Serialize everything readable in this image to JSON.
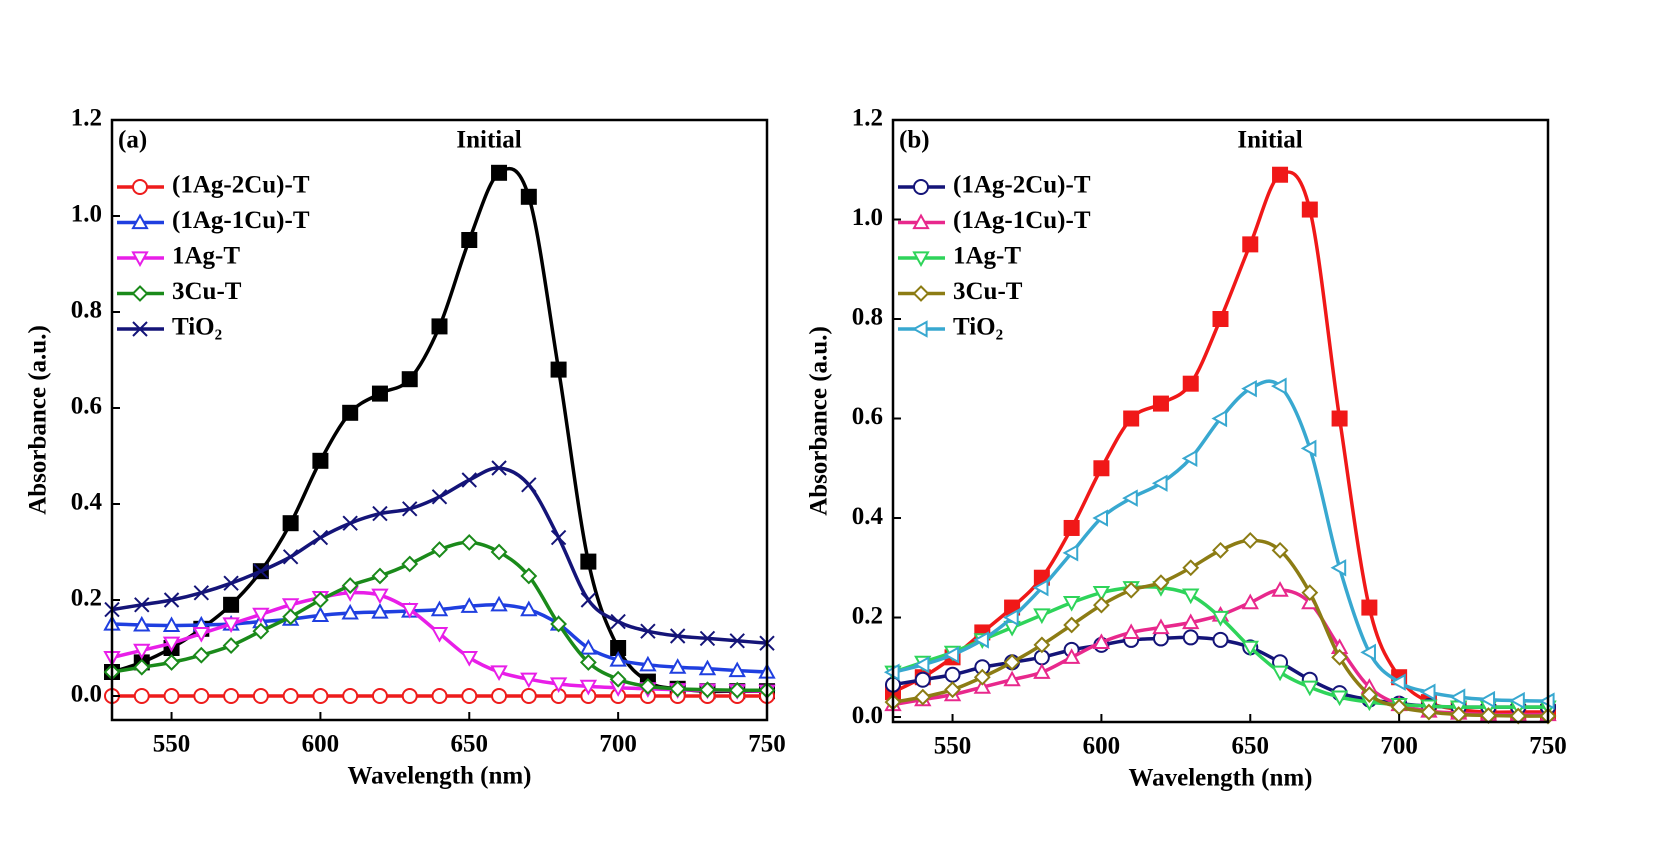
{
  "chart_data": [
    {
      "type": "line",
      "label": "(a)",
      "annotation": "Initial",
      "xlabel": "Wavelength (nm)",
      "ylabel": "Absorbance (a.u.)",
      "xlim": [
        530,
        750
      ],
      "ylim": [
        -0.05,
        1.2
      ],
      "xticks": [
        550,
        600,
        650,
        700,
        750
      ],
      "yticks": [
        {
          "value": 0,
          "label": "0.0"
        },
        0.2,
        0.4,
        0.6,
        0.8,
        {
          "value": 1,
          "label": "1.0"
        },
        1.2
      ],
      "x": [
        530,
        540,
        550,
        560,
        570,
        580,
        590,
        600,
        610,
        620,
        630,
        640,
        650,
        660,
        670,
        680,
        690,
        700,
        710,
        720,
        730,
        740,
        750
      ],
      "series": [
        {
          "color": "#000000",
          "marker": "square",
          "values": [
            0.05,
            0.07,
            0.1,
            0.14,
            0.19,
            0.26,
            0.36,
            0.49,
            0.59,
            0.63,
            0.66,
            0.77,
            0.95,
            1.09,
            1.04,
            0.68,
            0.28,
            0.1,
            0.03,
            0.015,
            0.01,
            0.01,
            0.01
          ]
        },
        {
          "name": "(1Ag-2Cu)-T",
          "color": "#ee1c1c",
          "marker": "circle",
          "values": [
            0,
            0,
            0,
            0,
            0,
            0,
            0,
            0,
            0,
            0,
            0,
            0,
            0,
            0,
            0,
            0,
            0,
            0,
            0,
            0,
            0,
            0,
            0
          ]
        },
        {
          "name": "(1Ag-1Cu)-T",
          "color": "#1f3fe0",
          "marker": "triangle-up",
          "values": [
            0.15,
            0.148,
            0.147,
            0.148,
            0.15,
            0.155,
            0.16,
            0.168,
            0.173,
            0.175,
            0.177,
            0.18,
            0.187,
            0.19,
            0.18,
            0.15,
            0.1,
            0.075,
            0.065,
            0.06,
            0.057,
            0.053,
            0.05
          ]
        },
        {
          "name": "1Ag-T",
          "color": "#e81ee8",
          "marker": "triangle-down",
          "values": [
            0.08,
            0.095,
            0.11,
            0.13,
            0.15,
            0.17,
            0.19,
            0.205,
            0.215,
            0.21,
            0.18,
            0.13,
            0.08,
            0.05,
            0.035,
            0.025,
            0.02,
            0.017,
            0.015,
            0.013,
            0.012,
            0.011,
            0.01
          ]
        },
        {
          "name": "3Cu-T",
          "color": "#1a8a1a",
          "marker": "diamond",
          "values": [
            0.05,
            0.06,
            0.07,
            0.085,
            0.105,
            0.135,
            0.165,
            0.2,
            0.23,
            0.25,
            0.275,
            0.305,
            0.32,
            0.3,
            0.25,
            0.15,
            0.07,
            0.035,
            0.02,
            0.015,
            0.013,
            0.012,
            0.012
          ]
        },
        {
          "name": "TiO₂",
          "color": "#141478",
          "marker": "x",
          "values": [
            0.18,
            0.19,
            0.2,
            0.215,
            0.235,
            0.26,
            0.29,
            0.33,
            0.36,
            0.38,
            0.39,
            0.415,
            0.45,
            0.475,
            0.44,
            0.33,
            0.2,
            0.155,
            0.135,
            0.125,
            0.12,
            0.115,
            0.11
          ]
        }
      ]
    },
    {
      "type": "line",
      "label": "(b)",
      "annotation": "Initial",
      "xlabel": "Wavelength (nm)",
      "ylabel": "Absorbance (a.u.)",
      "xlim": [
        530,
        750
      ],
      "ylim": [
        -0.01,
        1.2
      ],
      "xticks": [
        550,
        600,
        650,
        700,
        750
      ],
      "yticks": [
        {
          "value": 0,
          "label": "0.0"
        },
        0.2,
        0.4,
        0.6,
        0.8,
        {
          "value": 1,
          "label": "1.0"
        },
        1.2
      ],
      "x": [
        530,
        540,
        550,
        560,
        570,
        580,
        590,
        600,
        610,
        620,
        630,
        640,
        650,
        660,
        670,
        680,
        690,
        700,
        710,
        720,
        730,
        740,
        750
      ],
      "series": [
        {
          "color": "#f01818",
          "marker": "square",
          "values": [
            0.05,
            0.08,
            0.12,
            0.17,
            0.22,
            0.28,
            0.38,
            0.5,
            0.6,
            0.63,
            0.67,
            0.8,
            0.95,
            1.09,
            1.02,
            0.6,
            0.22,
            0.08,
            0.03,
            0.015,
            0.01,
            0.01,
            0.01
          ]
        },
        {
          "name": "(1Ag-2Cu)-T",
          "color": "#141478",
          "marker": "circle",
          "values": [
            0.065,
            0.075,
            0.085,
            0.1,
            0.11,
            0.12,
            0.135,
            0.145,
            0.155,
            0.158,
            0.16,
            0.155,
            0.14,
            0.11,
            0.075,
            0.048,
            0.035,
            0.027,
            0.022,
            0.02,
            0.02,
            0.02,
            0.02
          ]
        },
        {
          "name": "(1Ag-1Cu)-T",
          "color": "#e8288c",
          "marker": "triangle-up",
          "values": [
            0.025,
            0.035,
            0.045,
            0.06,
            0.075,
            0.09,
            0.12,
            0.15,
            0.17,
            0.18,
            0.19,
            0.205,
            0.23,
            0.255,
            0.23,
            0.14,
            0.06,
            0.025,
            0.012,
            0.008,
            0.005,
            0.005,
            0.005
          ]
        },
        {
          "name": "1Ag-T",
          "color": "#2ed45a",
          "marker": "triangle-down",
          "values": [
            0.09,
            0.11,
            0.13,
            0.155,
            0.18,
            0.205,
            0.23,
            0.25,
            0.26,
            0.26,
            0.245,
            0.2,
            0.14,
            0.09,
            0.06,
            0.04,
            0.03,
            0.025,
            0.022,
            0.02,
            0.02,
            0.02,
            0.02
          ]
        },
        {
          "name": "3Cu-T",
          "color": "#8c7c14",
          "marker": "diamond",
          "values": [
            0.03,
            0.04,
            0.055,
            0.08,
            0.11,
            0.145,
            0.185,
            0.225,
            0.255,
            0.27,
            0.3,
            0.335,
            0.355,
            0.335,
            0.25,
            0.12,
            0.045,
            0.02,
            0.01,
            0.005,
            0.003,
            0.002,
            0.002
          ]
        },
        {
          "name": "TiO₂",
          "color": "#38a8d0",
          "marker": "triangle-left",
          "values": [
            0.09,
            0.105,
            0.125,
            0.155,
            0.2,
            0.26,
            0.33,
            0.4,
            0.44,
            0.47,
            0.52,
            0.6,
            0.66,
            0.665,
            0.54,
            0.3,
            0.13,
            0.07,
            0.05,
            0.04,
            0.035,
            0.033,
            0.032
          ]
        }
      ]
    }
  ]
}
